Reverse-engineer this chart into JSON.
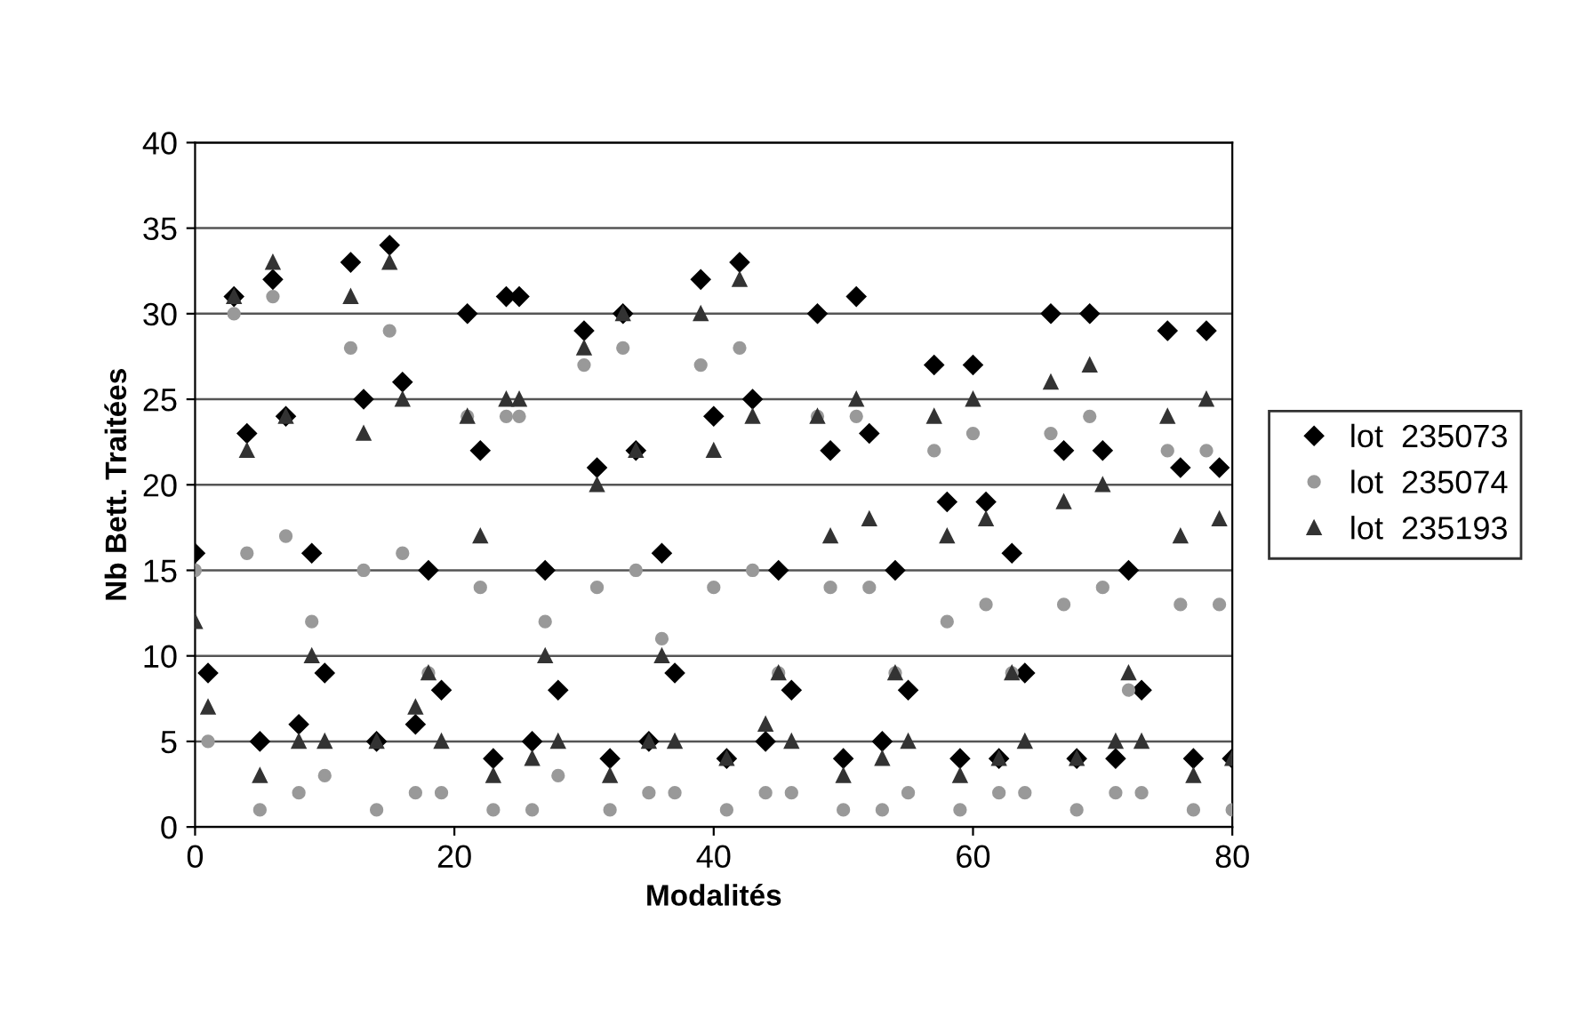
{
  "chart_data": {
    "type": "scatter",
    "xlabel": "Modalités",
    "ylabel": "Nb Bett. Traitées",
    "x": [
      0,
      1,
      3,
      4,
      5,
      6,
      7,
      8,
      9,
      10,
      12,
      13,
      14,
      15,
      16,
      17,
      18,
      19,
      21,
      22,
      23,
      24,
      25,
      26,
      27,
      28,
      30,
      31,
      32,
      33,
      34,
      35,
      36,
      37,
      39,
      40,
      41,
      42,
      43,
      44,
      45,
      46,
      48,
      49,
      50,
      51,
      52,
      53,
      54,
      55,
      57,
      58,
      59,
      60,
      61,
      62,
      63,
      64,
      66,
      67,
      68,
      69,
      70,
      71,
      72,
      73,
      75,
      76,
      77,
      78,
      79,
      80
    ],
    "series": [
      {
        "name": "lot  235073",
        "color": "#000000",
        "marker": "diamond",
        "values": [
          16,
          9,
          31,
          23,
          5,
          32,
          24,
          6,
          16,
          9,
          33,
          25,
          5,
          34,
          26,
          6,
          15,
          8,
          30,
          22,
          4,
          31,
          31,
          5,
          15,
          8,
          29,
          21,
          4,
          30,
          22,
          5,
          16,
          9,
          32,
          24,
          4,
          33,
          25,
          5,
          15,
          8,
          30,
          22,
          4,
          31,
          23,
          5,
          15,
          8,
          27,
          19,
          4,
          27,
          19,
          4,
          16,
          9,
          30,
          22,
          4,
          30,
          22,
          4,
          15,
          8,
          29,
          21,
          4,
          29,
          21,
          4
        ]
      },
      {
        "name": "lot  235074",
        "color": "#999999",
        "marker": "circle",
        "values": [
          15,
          5,
          30,
          16,
          1,
          31,
          17,
          2,
          12,
          3,
          28,
          15,
          1,
          29,
          16,
          2,
          9,
          2,
          24,
          14,
          1,
          24,
          24,
          1,
          12,
          3,
          27,
          14,
          1,
          28,
          15,
          2,
          11,
          2,
          27,
          14,
          1,
          28,
          15,
          2,
          9,
          2,
          24,
          14,
          1,
          24,
          14,
          1,
          9,
          2,
          22,
          12,
          1,
          23,
          13,
          2,
          9,
          2,
          23,
          13,
          1,
          24,
          14,
          2,
          8,
          2,
          22,
          13,
          1,
          22,
          13,
          1
        ]
      },
      {
        "name": "lot  235193",
        "color": "#333333",
        "marker": "triangle",
        "values": [
          12,
          7,
          31,
          22,
          3,
          33,
          24,
          5,
          10,
          5,
          31,
          23,
          5,
          33,
          25,
          7,
          9,
          5,
          24,
          17,
          3,
          25,
          25,
          4,
          10,
          5,
          28,
          20,
          3,
          30,
          22,
          5,
          10,
          5,
          30,
          22,
          4,
          32,
          24,
          6,
          9,
          5,
          24,
          17,
          3,
          25,
          18,
          4,
          9,
          5,
          24,
          17,
          3,
          25,
          18,
          4,
          9,
          5,
          26,
          19,
          4,
          27,
          20,
          5,
          9,
          5,
          24,
          17,
          3,
          25,
          18,
          4
        ]
      }
    ],
    "xlim": [
      0,
      80
    ],
    "xticks": [
      0,
      20,
      40,
      60,
      80
    ],
    "ylim": [
      0,
      40
    ],
    "yticks": [
      0,
      5,
      10,
      15,
      20,
      25,
      30,
      35,
      40
    ],
    "grid": "y",
    "legend": "right"
  }
}
